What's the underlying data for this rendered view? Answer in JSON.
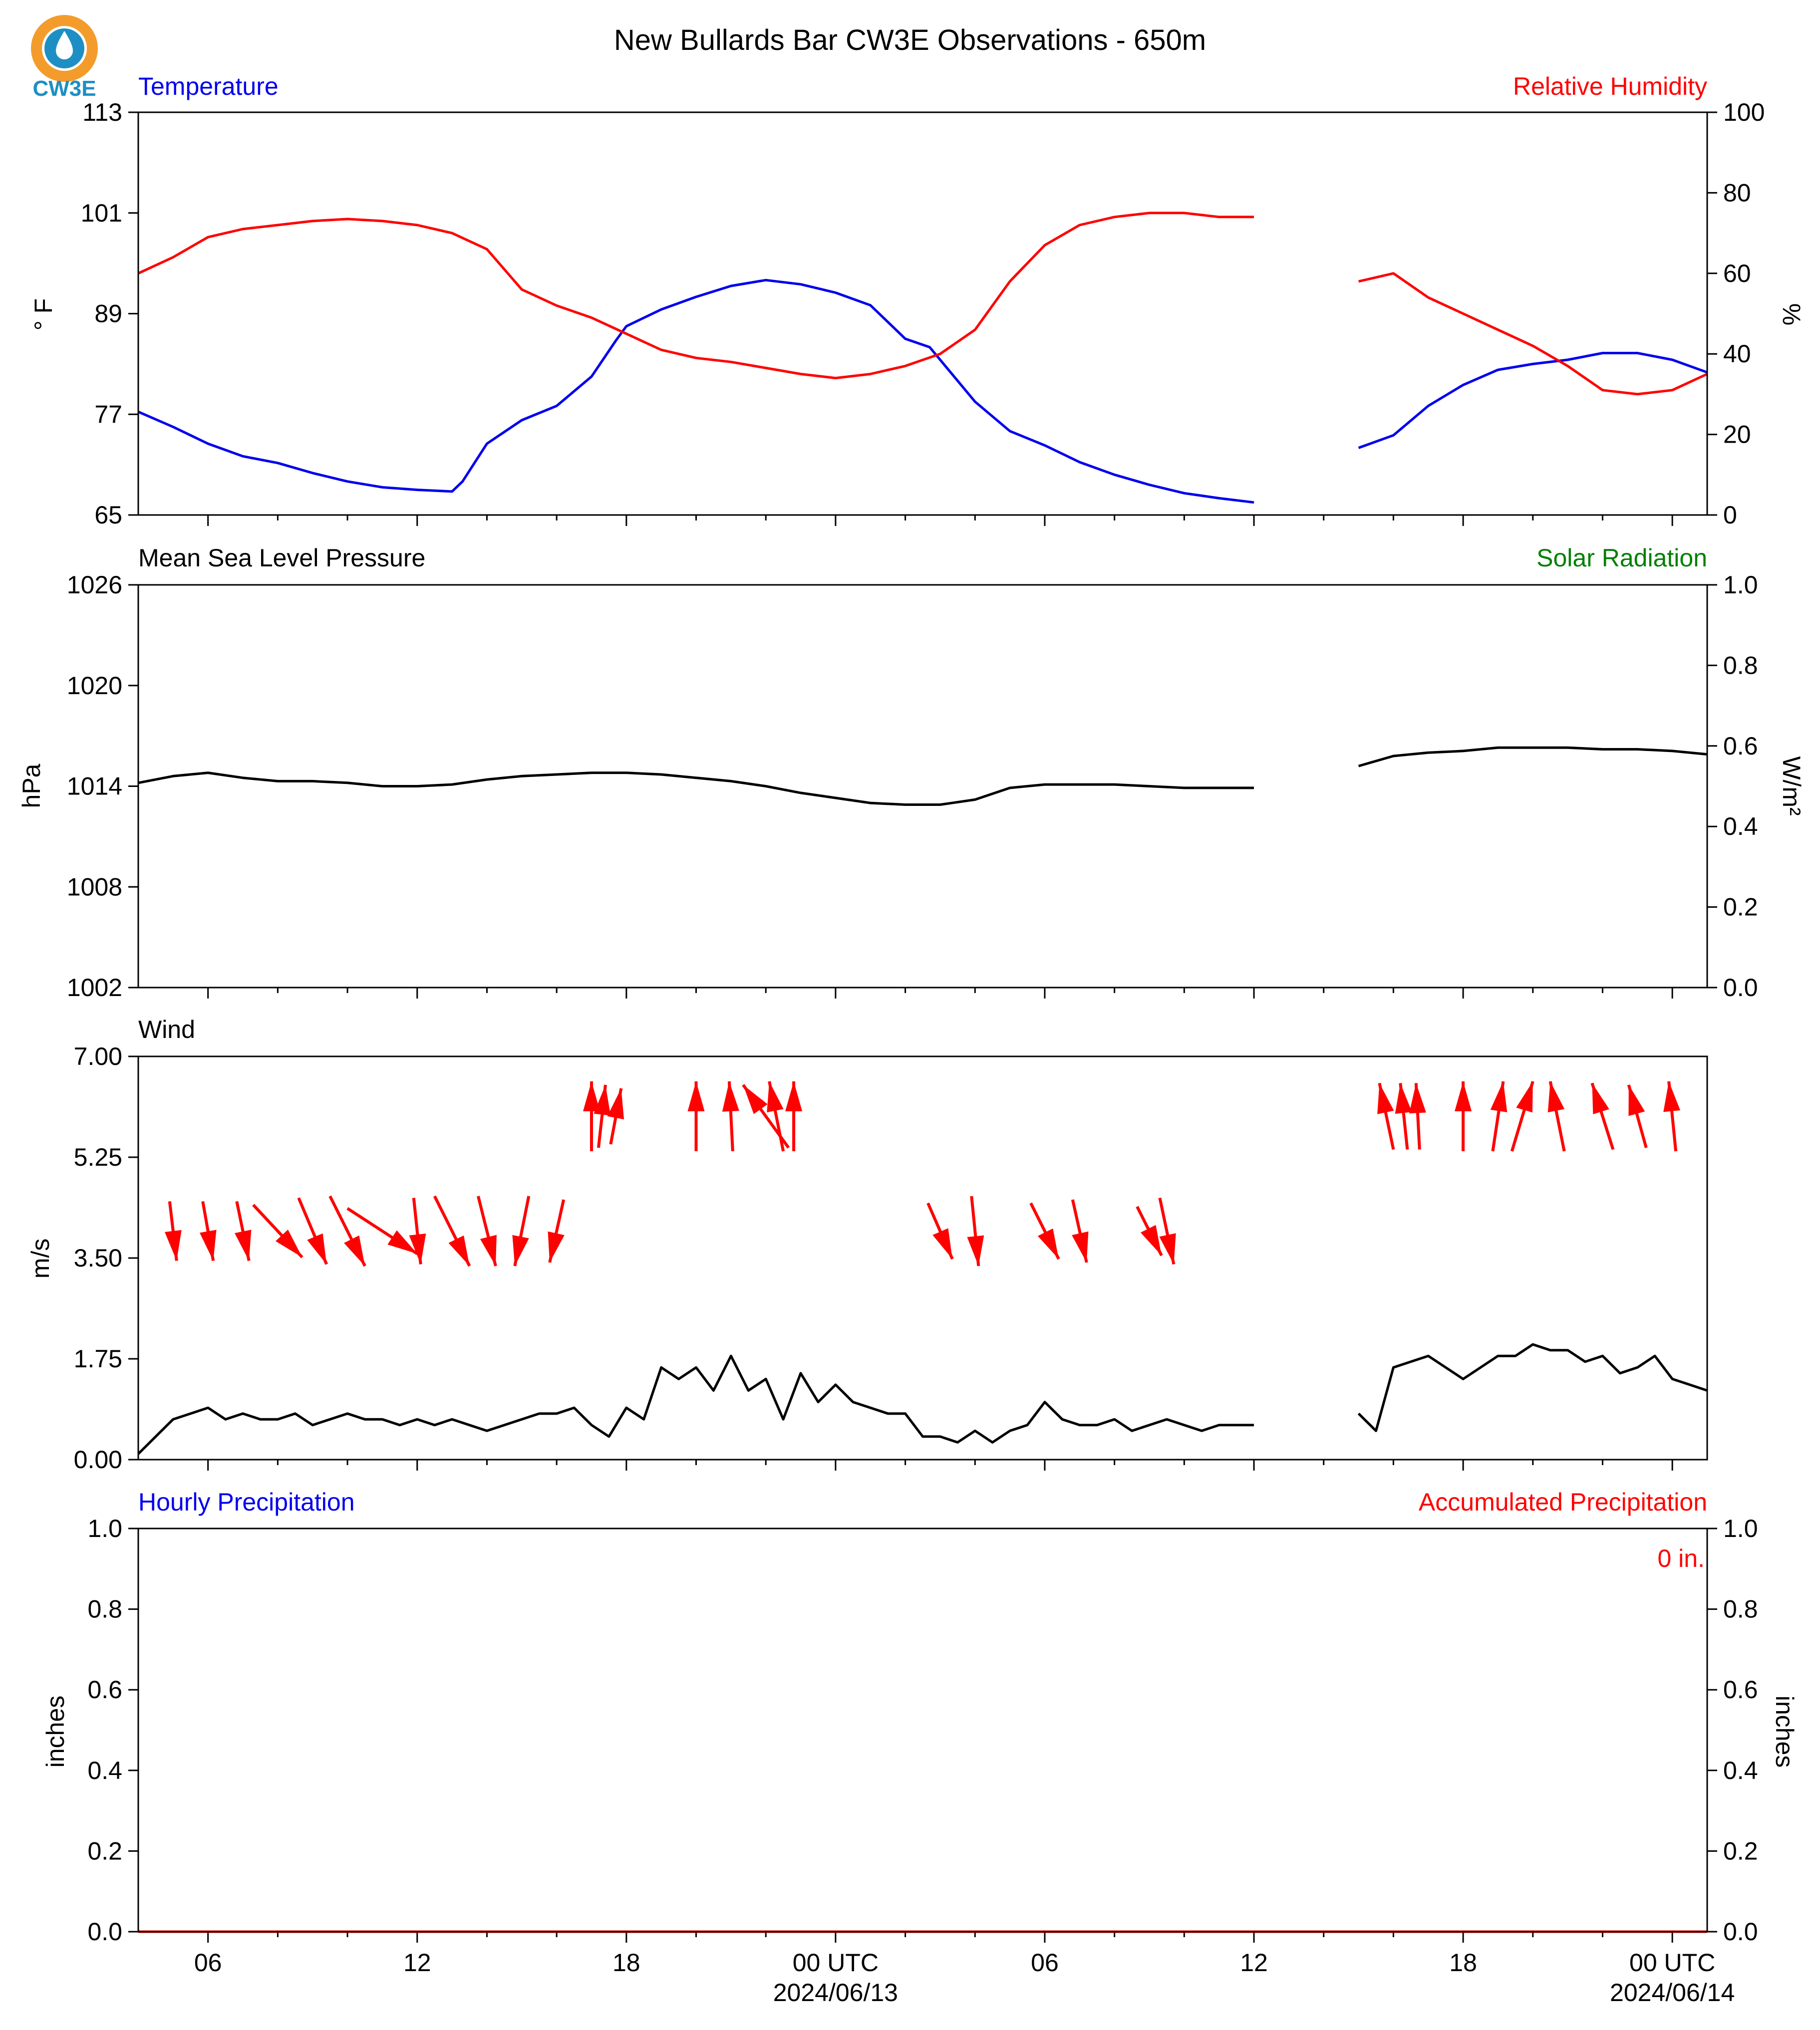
{
  "figure": {
    "title": "New Bullards Bar CW3E Observations - 650m",
    "logo_text": "CW3E"
  },
  "colors": {
    "temperature": "#0000ee",
    "humidity": "#ff0000",
    "pressure": "#000000",
    "solar": "#008000",
    "wind": "#000000",
    "wind_arrows": "#ff0000",
    "precip_hourly": "#0000ee",
    "precip_accum": "#ff0000",
    "logo_orange": "#f39c2b",
    "logo_blue": "#1d8fc5"
  },
  "time_axis": {
    "start": "2024-06-12 04:00 UTC",
    "end": "2024-06-14 01:00 UTC",
    "major_ticks": [
      {
        "hour": 6,
        "label": "06",
        "date": ""
      },
      {
        "hour": 12,
        "label": "12",
        "date": ""
      },
      {
        "hour": 18,
        "label": "18",
        "date": ""
      },
      {
        "hour": 24,
        "label": "00 UTC",
        "date": "2024/06/13"
      },
      {
        "hour": 30,
        "label": "06",
        "date": ""
      },
      {
        "hour": 36,
        "label": "12",
        "date": ""
      },
      {
        "hour": 42,
        "label": "18",
        "date": ""
      },
      {
        "hour": 48,
        "label": "00 UTC",
        "date": "2024/06/14"
      }
    ],
    "minor_tick_hours": [
      8,
      10,
      14,
      16,
      20,
      22,
      26,
      28,
      32,
      34,
      38,
      40,
      44,
      46
    ],
    "note_hours": "hours since 2024-06-12 00 UTC; data gap from ~36 to ~39 h"
  },
  "chart_data": [
    {
      "type": "line",
      "panel": "temperature_humidity",
      "left_title": "Temperature",
      "right_title": "Relative Humidity",
      "ylabel_left": "° F",
      "ylabel_right": "%",
      "ylim_left": [
        65,
        113
      ],
      "yticks_left": [
        "65",
        "77",
        "89",
        "101",
        "113"
      ],
      "ylim_right": [
        0,
        100
      ],
      "yticks_right": [
        "0",
        "20",
        "40",
        "60",
        "80",
        "100"
      ],
      "series": [
        {
          "name": "Temperature",
          "axis": "left",
          "x": [
            4,
            5,
            6,
            7,
            8,
            9,
            10,
            11,
            12,
            13,
            13.3,
            14,
            15,
            16,
            17,
            17.7,
            18,
            19,
            20,
            21,
            22,
            23,
            24,
            25,
            25.5,
            26,
            26.7,
            27,
            28,
            29,
            30,
            31,
            32,
            33,
            34,
            35,
            36
          ],
          "y": [
            77.3,
            75.5,
            73.5,
            72.0,
            71.2,
            70.0,
            69.0,
            68.3,
            68.0,
            67.8,
            69.0,
            73.5,
            76.3,
            78.0,
            81.5,
            85.8,
            87.5,
            89.5,
            91.0,
            92.3,
            93.0,
            92.5,
            91.5,
            90.0,
            88.0,
            86.0,
            85.0,
            83.5,
            78.5,
            75.0,
            73.3,
            71.3,
            69.8,
            68.6,
            67.6,
            67.0,
            66.5
          ]
        },
        {
          "name": "Temperature",
          "axis": "left",
          "x": [
            39,
            40,
            41,
            42,
            43,
            44,
            45,
            46,
            47,
            48,
            49
          ],
          "y": [
            73.0,
            74.5,
            78.0,
            80.5,
            82.3,
            83.0,
            83.5,
            84.3,
            84.3,
            83.5,
            82.0
          ]
        },
        {
          "name": "Relative Humidity",
          "axis": "right",
          "x": [
            4,
            5,
            6,
            7,
            8,
            9,
            10,
            11,
            12,
            13,
            14,
            15,
            16,
            17,
            18,
            19,
            20,
            21,
            22,
            23,
            24,
            25,
            26,
            27,
            28,
            29,
            30,
            31,
            32,
            33,
            34,
            35,
            36
          ],
          "y": [
            60,
            64,
            69,
            71,
            72,
            73,
            73.5,
            73,
            72,
            70,
            66,
            56,
            52,
            49,
            45,
            41,
            39,
            38,
            36.5,
            35,
            34,
            35,
            37,
            40,
            46,
            58,
            67,
            72,
            74,
            75,
            75,
            74,
            74
          ]
        },
        {
          "name": "Relative Humidity",
          "axis": "right",
          "x": [
            39,
            40,
            41,
            42,
            43,
            44,
            45,
            46,
            47,
            48,
            49
          ],
          "y": [
            58,
            60,
            54,
            50,
            46,
            42,
            37,
            31,
            30,
            31,
            35
          ]
        }
      ]
    },
    {
      "type": "line",
      "panel": "pressure_solar",
      "left_title": "Mean Sea Level Pressure",
      "right_title": "Solar Radiation",
      "ylabel_left": "hPa",
      "ylabel_right": "W/m²",
      "ylim_left": [
        1002,
        1026
      ],
      "yticks_left": [
        "1002",
        "1008",
        "1014",
        "1020",
        "1026"
      ],
      "ylim_right": [
        0,
        1
      ],
      "yticks_right": [
        "0.0",
        "0.2",
        "0.4",
        "0.6",
        "0.8",
        "1.0"
      ],
      "series": [
        {
          "name": "Mean Sea Level Pressure",
          "axis": "left",
          "x": [
            4,
            5,
            6,
            7,
            8,
            9,
            10,
            11,
            12,
            13,
            14,
            15,
            16,
            17,
            18,
            19,
            20,
            21,
            22,
            23,
            24,
            25,
            26,
            27,
            28,
            29,
            30,
            31,
            32,
            33,
            34,
            35,
            36
          ],
          "y": [
            1014.2,
            1014.6,
            1014.8,
            1014.5,
            1014.3,
            1014.3,
            1014.2,
            1014.0,
            1014.0,
            1014.1,
            1014.4,
            1014.6,
            1014.7,
            1014.8,
            1014.8,
            1014.7,
            1014.5,
            1014.3,
            1014.0,
            1013.6,
            1013.3,
            1013.0,
            1012.9,
            1012.9,
            1013.2,
            1013.9,
            1014.1,
            1014.1,
            1014.1,
            1014.0,
            1013.9,
            1013.9,
            1013.9
          ]
        },
        {
          "name": "Mean Sea Level Pressure",
          "axis": "left",
          "x": [
            39,
            40,
            41,
            42,
            43,
            44,
            45,
            46,
            47,
            48,
            49
          ],
          "y": [
            1015.2,
            1015.8,
            1016.0,
            1016.1,
            1016.3,
            1016.3,
            1016.3,
            1016.2,
            1016.2,
            1016.1,
            1015.9
          ]
        }
      ]
    },
    {
      "type": "line",
      "panel": "wind",
      "left_title": "Wind",
      "ylabel_left": "m/s",
      "ylim_left": [
        0,
        7
      ],
      "yticks_left": [
        "0.00",
        "1.75",
        "3.50",
        "5.25",
        "7.00"
      ],
      "series": [
        {
          "name": "Wind",
          "axis": "left",
          "x": [
            4,
            4.5,
            5,
            5.5,
            6,
            6.5,
            7,
            7.5,
            8,
            8.5,
            9,
            9.5,
            10,
            10.5,
            11,
            11.5,
            12,
            12.5,
            13,
            13.5,
            14,
            14.5,
            15,
            15.5,
            16,
            16.5,
            17,
            17.5,
            18,
            18.5,
            19,
            19.5,
            20,
            20.5,
            21,
            21.5,
            22,
            22.5,
            23,
            23.5,
            24,
            24.5,
            25,
            25.5,
            26,
            26.5,
            27,
            27.5,
            28,
            28.5,
            29,
            29.5,
            30,
            30.5,
            31,
            31.5,
            32,
            32.5,
            33,
            33.5,
            34,
            34.5,
            35,
            35.5,
            36
          ],
          "y": [
            0.1,
            0.4,
            0.7,
            0.8,
            0.9,
            0.7,
            0.8,
            0.7,
            0.7,
            0.8,
            0.6,
            0.7,
            0.8,
            0.7,
            0.7,
            0.6,
            0.7,
            0.6,
            0.7,
            0.6,
            0.5,
            0.6,
            0.7,
            0.8,
            0.8,
            0.9,
            0.6,
            0.4,
            0.9,
            0.7,
            1.6,
            1.4,
            1.6,
            1.2,
            1.8,
            1.2,
            1.4,
            0.7,
            1.5,
            1.0,
            1.3,
            1.0,
            0.9,
            0.8,
            0.8,
            0.4,
            0.4,
            0.3,
            0.5,
            0.3,
            0.5,
            0.6,
            1.0,
            0.7,
            0.6,
            0.6,
            0.7,
            0.5,
            0.6,
            0.7,
            0.6,
            0.5,
            0.6,
            0.6,
            0.6
          ]
        },
        {
          "name": "Wind",
          "axis": "left",
          "x": [
            39,
            39.5,
            40,
            40.5,
            41,
            41.5,
            42,
            42.5,
            43,
            43.5,
            44,
            44.5,
            45,
            45.5,
            46,
            46.5,
            47,
            47.5,
            48,
            48.5,
            49
          ],
          "y": [
            0.8,
            0.5,
            1.6,
            1.7,
            1.8,
            1.6,
            1.4,
            1.6,
            1.8,
            1.8,
            2.0,
            1.9,
            1.9,
            1.7,
            1.8,
            1.5,
            1.6,
            1.8,
            1.4,
            1.3,
            1.2
          ]
        }
      ],
      "direction_arrows": {
        "note": "arrow points in direction the wind blows toward; dx, dy in m/s",
        "hours": [
          5,
          6,
          7,
          8,
          9,
          10,
          11,
          12,
          13,
          14,
          15,
          16,
          17,
          17.3,
          17.7,
          20,
          21,
          22,
          22.3,
          22.8,
          27,
          28,
          30,
          31,
          33,
          33.5,
          39.8,
          40.3,
          40.7,
          42,
          43,
          43.7,
          44.7,
          46,
          47,
          48
        ],
        "u": [
          0.2,
          0.3,
          0.35,
          1.4,
          0.8,
          1.0,
          2.0,
          0.2,
          1.0,
          0.5,
          -0.4,
          -0.4,
          0.0,
          0.2,
          0.3,
          0.0,
          -0.1,
          -1.3,
          -0.4,
          0.0,
          0.7,
          0.2,
          0.8,
          0.4,
          0.7,
          0.4,
          -0.4,
          -0.2,
          -0.1,
          0.0,
          0.3,
          0.6,
          -0.4,
          -0.6,
          -0.5,
          -0.2
        ],
        "v": [
          -1.7,
          -1.7,
          -1.7,
          -1.5,
          -1.9,
          -2.0,
          -1.3,
          -1.9,
          -2.0,
          -2.0,
          -2.0,
          -1.8,
          2.0,
          1.8,
          1.6,
          2.0,
          2.0,
          1.8,
          2.0,
          2.0,
          -1.6,
          -2.0,
          -1.6,
          -1.8,
          -1.4,
          -1.9,
          1.9,
          1.9,
          1.9,
          2.0,
          2.0,
          2.0,
          2.0,
          1.9,
          1.8,
          2.0
        ]
      }
    },
    {
      "type": "line",
      "panel": "precipitation",
      "left_title": "Hourly Precipitation",
      "right_title": "Accumulated Precipitation",
      "ylabel_left": "inches",
      "ylabel_right": "inches",
      "ylim_left": [
        0,
        1
      ],
      "yticks_left": [
        "0.0",
        "0.2",
        "0.4",
        "0.6",
        "0.8",
        "1.0"
      ],
      "ylim_right": [
        0,
        1
      ],
      "yticks_right": [
        "0.0",
        "0.2",
        "0.4",
        "0.6",
        "0.8",
        "1.0"
      ],
      "accumulated_label": "0 in.",
      "series": [
        {
          "name": "Hourly Precipitation",
          "axis": "left",
          "x": [
            4,
            49
          ],
          "y": [
            0,
            0
          ]
        },
        {
          "name": "Accumulated Precipitation",
          "axis": "right",
          "x": [
            4,
            49
          ],
          "y": [
            0,
            0
          ]
        }
      ]
    }
  ]
}
